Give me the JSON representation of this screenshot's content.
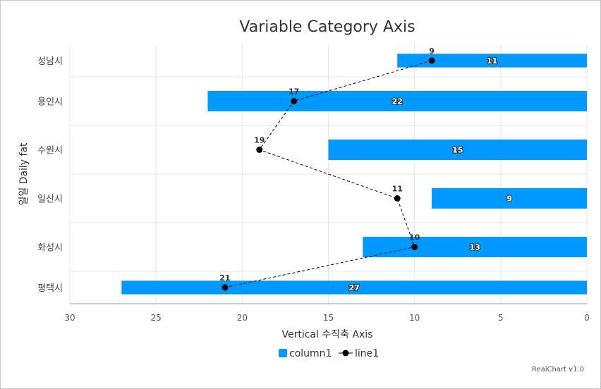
{
  "chart_data": {
    "type": "bar",
    "orientation": "horizontal",
    "title": "Variable Category Axis",
    "xlabel": "Vertical 수직축 Axis",
    "ylabel": "일일 Daily fat",
    "x_reversed": true,
    "xlim": [
      0,
      30
    ],
    "xticks": [
      "30",
      "25",
      "20",
      "15",
      "10",
      "5",
      "0"
    ],
    "grid": true,
    "legend_position": "bottom",
    "categories": [
      "성남시",
      "용인시",
      "수원시",
      "일산시",
      "화성시",
      "평택시"
    ],
    "category_weights": [
      1,
      1.5,
      1.5,
      1.5,
      1.5,
      1
    ],
    "series": [
      {
        "name": "column1",
        "type": "bar",
        "color": "#0099ff",
        "values": [
          11,
          22,
          15,
          9,
          13,
          27
        ]
      },
      {
        "name": "line1",
        "type": "line",
        "style": "dashed",
        "marker": "circle",
        "color": "#000000",
        "values": [
          9,
          17,
          19,
          11,
          10,
          21
        ]
      }
    ]
  },
  "credits": "RealChart v1.0"
}
